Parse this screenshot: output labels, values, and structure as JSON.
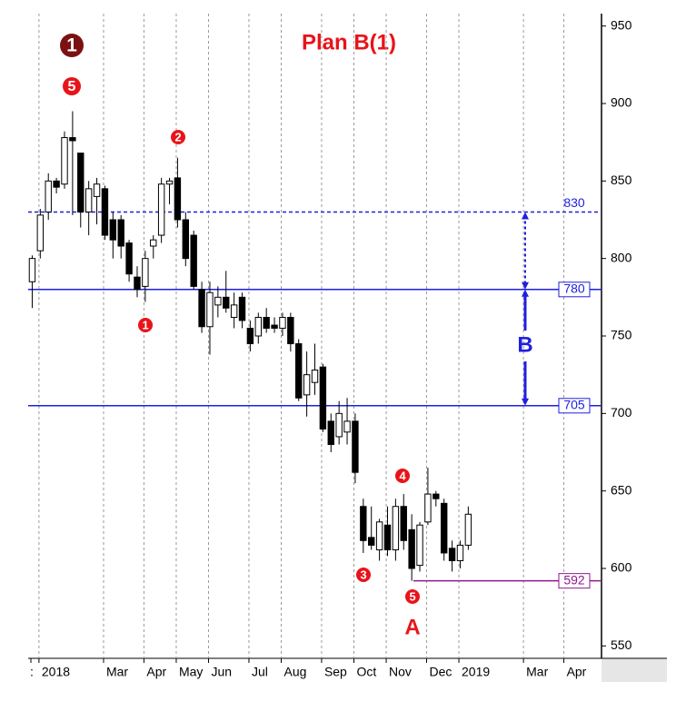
{
  "chart_data": {
    "type": "candlestick",
    "title": "Plan B(1)",
    "categories": [
      ":",
      "2018",
      null,
      null,
      null,
      null,
      null,
      null,
      null,
      "Mar",
      null,
      null,
      null,
      null,
      "Apr",
      null,
      null,
      null,
      "May",
      null,
      null,
      null,
      "Jun",
      null,
      null,
      null,
      null,
      "Jul",
      null,
      null,
      null,
      "Aug",
      null,
      null,
      null,
      null,
      "Sep",
      null,
      null,
      null,
      "Oct",
      null,
      null,
      null,
      "Nov",
      null,
      null,
      null,
      null,
      "Dec",
      null,
      null,
      null,
      "2019",
      null,
      null,
      null,
      null,
      null,
      null,
      null,
      "Mar",
      null,
      null,
      null,
      null,
      "Apr",
      null,
      null,
      null,
      null
    ],
    "open": [
      785,
      805,
      830,
      850,
      848,
      878,
      868,
      830,
      840,
      845,
      825,
      825,
      810,
      788,
      782,
      808,
      815,
      848,
      852,
      825,
      815,
      780,
      756,
      770,
      775,
      762,
      775,
      755,
      750,
      762,
      757,
      755,
      762,
      745,
      712,
      720,
      730,
      695,
      685,
      688,
      695,
      640,
      620,
      612,
      628,
      612,
      640,
      625,
      602,
      630,
      648,
      642,
      613,
      605,
      615,
      null,
      null,
      null,
      null,
      null,
      null,
      null,
      null,
      null,
      null,
      null,
      null,
      null,
      null,
      null,
      null
    ],
    "high": [
      802,
      832,
      855,
      852,
      882,
      895,
      868,
      850,
      852,
      847,
      830,
      828,
      812,
      795,
      805,
      815,
      852,
      852,
      865,
      830,
      818,
      785,
      785,
      782,
      792,
      778,
      778,
      760,
      765,
      768,
      762,
      765,
      765,
      748,
      740,
      745,
      732,
      700,
      708,
      710,
      700,
      645,
      640,
      632,
      640,
      645,
      648,
      635,
      630,
      665,
      650,
      645,
      618,
      618,
      640,
      null,
      null,
      null,
      null,
      null,
      null,
      null,
      null,
      null,
      null,
      null,
      null,
      null,
      null,
      null,
      null
    ],
    "low": [
      768,
      800,
      825,
      842,
      845,
      828,
      820,
      815,
      822,
      812,
      800,
      800,
      785,
      775,
      772,
      800,
      810,
      835,
      820,
      795,
      780,
      752,
      738,
      762,
      765,
      755,
      755,
      740,
      745,
      752,
      752,
      750,
      740,
      708,
      698,
      712,
      688,
      675,
      680,
      680,
      655,
      610,
      612,
      605,
      608,
      605,
      612,
      592,
      598,
      628,
      640,
      605,
      598,
      600,
      612,
      null,
      null,
      null,
      null,
      null,
      null,
      null,
      null,
      null,
      null,
      null,
      null,
      null,
      null,
      null,
      null
    ],
    "close": [
      800,
      828,
      850,
      846,
      878,
      876,
      830,
      845,
      848,
      815,
      812,
      808,
      790,
      780,
      800,
      812,
      848,
      850,
      825,
      800,
      782,
      756,
      778,
      775,
      768,
      770,
      760,
      745,
      762,
      755,
      755,
      762,
      745,
      710,
      725,
      728,
      690,
      680,
      700,
      695,
      662,
      618,
      615,
      630,
      612,
      640,
      618,
      600,
      628,
      648,
      645,
      610,
      605,
      615,
      635,
      null,
      null,
      null,
      null,
      null,
      null,
      null,
      null,
      null,
      null,
      null,
      null,
      null,
      null,
      null,
      null
    ],
    "up_color": "#ffffff",
    "down_color": "#000000",
    "ylim": [
      542,
      958
    ],
    "yticks": [
      550,
      600,
      650,
      700,
      750,
      800,
      850,
      900,
      950
    ],
    "levels": [
      {
        "value": 830,
        "color": "#1f1fe0",
        "style": "dashed",
        "boxed": false
      },
      {
        "value": 780,
        "color": "#1f1fe0",
        "style": "solid",
        "boxed": true
      },
      {
        "value": 705,
        "color": "#1f1fe0",
        "style": "solid",
        "boxed": true
      },
      {
        "value": 592,
        "color": "#8b1a8b",
        "style": "solid",
        "boxed": true
      }
    ],
    "wave_labels": [
      "1",
      "5",
      "2",
      "1",
      "3",
      "4",
      "5"
    ],
    "letters": [
      "A",
      "B"
    ]
  }
}
